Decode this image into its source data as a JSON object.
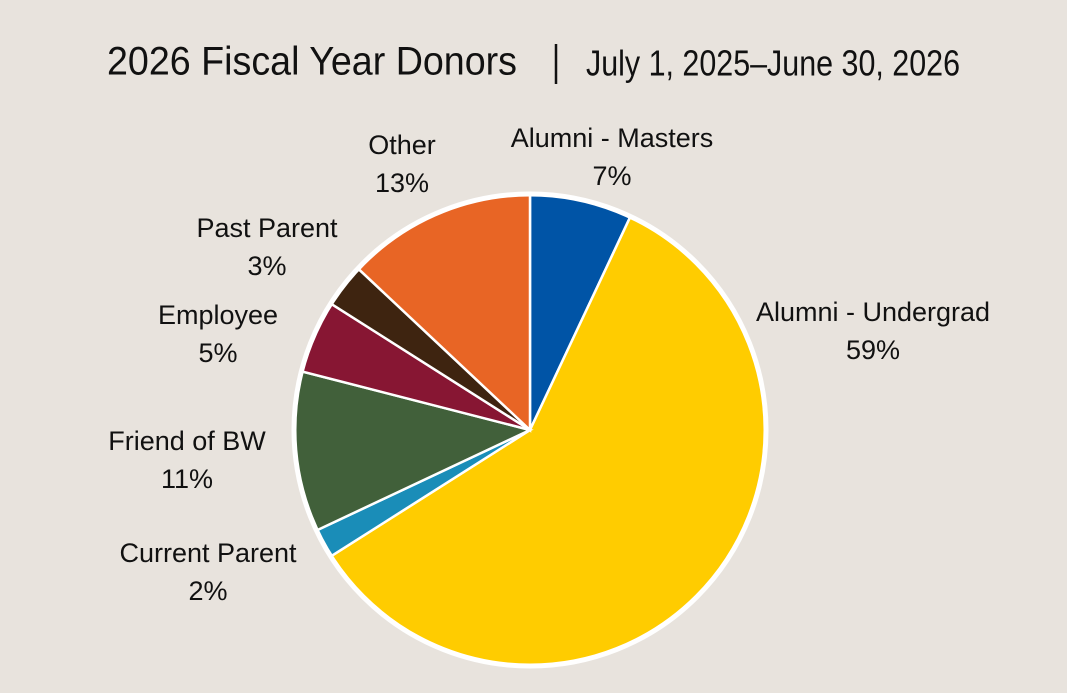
{
  "chart_data": {
    "type": "pie",
    "title": "2026 Fiscal Year Donors",
    "subtitle": "July 1, 2025–June 30, 2026",
    "categories": [
      "Alumni - Masters",
      "Alumni - Undergrad",
      "Current Parent",
      "Friend of BW",
      "Employee",
      "Past Parent",
      "Other"
    ],
    "values": [
      7,
      59,
      2,
      11,
      5,
      3,
      13
    ],
    "value_labels": [
      "7%",
      "59%",
      "2%",
      "11%",
      "5%",
      "3%",
      "13%"
    ],
    "colors": [
      "#0054a6",
      "#ffcc00",
      "#1a8db8",
      "#41603a",
      "#871633",
      "#3e2410",
      "#e86525"
    ]
  }
}
